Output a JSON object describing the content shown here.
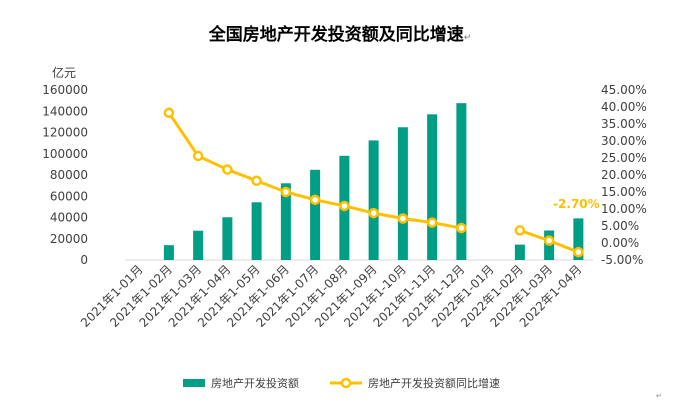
{
  "chart_data": {
    "type": "bar+line",
    "title": "全国房地产开发投资额及同比增速",
    "title_mark": "↵",
    "corner_mark": "↵",
    "y_left_unit": "亿元",
    "y_left_ticks": [
      "0",
      "20000",
      "40000",
      "60000",
      "80000",
      "100000",
      "120000",
      "140000",
      "160000"
    ],
    "y_left_range": [
      0,
      160000
    ],
    "y_right_ticks": [
      "-5.00%",
      "0.00%",
      "5.00%",
      "10.00%",
      "15.00%",
      "20.00%",
      "25.00%",
      "30.00%",
      "35.00%",
      "40.00%",
      "45.00%"
    ],
    "y_right_range": [
      -5,
      45
    ],
    "categories": [
      "2021年1-01月",
      "2021年1-02月",
      "2021年1-03月",
      "2021年1-04月",
      "2021年1-05月",
      "2021年1-06月",
      "2021年1-07月",
      "2021年1-08月",
      "2021年1-09月",
      "2021年1-10月",
      "2021年1-11月",
      "2021年1-12月",
      "2022年1-01月",
      "2022年1-02月",
      "2022年1-03月",
      "2022年1-04月"
    ],
    "series": [
      {
        "name": "房地产开发投资额",
        "type": "bar",
        "axis": "left",
        "color": "#009E84",
        "values": [
          null,
          13986,
          27576,
          40240,
          54318,
          72179,
          84895,
          98060,
          112568,
          124934,
          137086,
          147602,
          null,
          14499,
          27765,
          39154
        ]
      },
      {
        "name": "房地产开发投资额同比增速",
        "type": "line",
        "axis": "right",
        "color": "#FFC000",
        "values": [
          null,
          38.3,
          25.6,
          21.6,
          18.3,
          15.0,
          12.7,
          10.9,
          8.8,
          7.2,
          6.0,
          4.4,
          null,
          3.7,
          0.7,
          -2.7
        ]
      }
    ],
    "annotations": [
      {
        "text": "-2.70%",
        "category_index": 15,
        "color": "#FFC000"
      }
    ],
    "legend_position": "bottom",
    "grid": false
  }
}
